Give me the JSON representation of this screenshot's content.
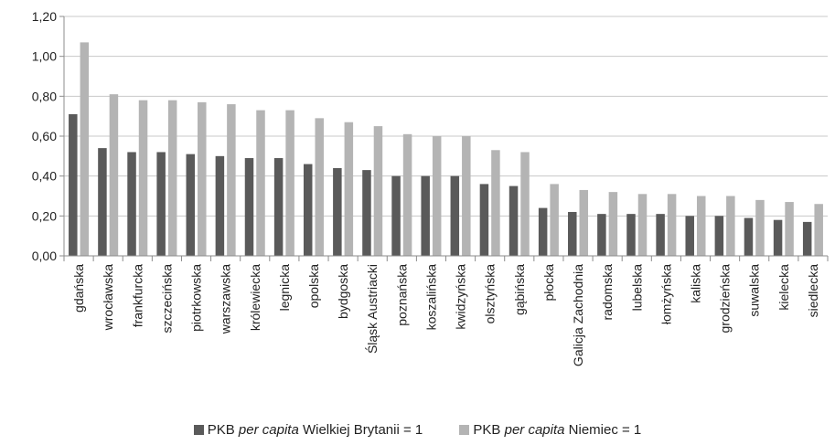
{
  "chart_data": {
    "type": "bar",
    "categories": [
      "gdańska",
      "wrocławska",
      "frankfurcka",
      "szczecińska",
      "piotrkowska",
      "warszawska",
      "królewiecka",
      "legnicka",
      "opolska",
      "bydgoska",
      "Śląsk Austriacki",
      "poznańska",
      "koszalińska",
      "kwidzyńska",
      "olsztyńska",
      "gąbińska",
      "płocka",
      "Galicja Zachodnia",
      "radomska",
      "lubelska",
      "łomżyńska",
      "kaliska",
      "grodzieńska",
      "suwalska",
      "kielecka",
      "siedlecka"
    ],
    "series": [
      {
        "name_prefix": "PKB ",
        "name_italic": "per capita",
        "name_suffix": " Wielkiej Brytanii = 1",
        "color": "#5a5a5a",
        "values": [
          0.71,
          0.54,
          0.52,
          0.52,
          0.51,
          0.5,
          0.49,
          0.49,
          0.46,
          0.44,
          0.43,
          0.4,
          0.4,
          0.4,
          0.36,
          0.35,
          0.24,
          0.22,
          0.21,
          0.21,
          0.21,
          0.2,
          0.2,
          0.19,
          0.18,
          0.17
        ]
      },
      {
        "name_prefix": "PKB ",
        "name_italic": "per capita",
        "name_suffix": " Niemiec = 1",
        "color": "#b4b4b4",
        "values": [
          1.07,
          0.81,
          0.78,
          0.78,
          0.77,
          0.76,
          0.73,
          0.73,
          0.69,
          0.67,
          0.65,
          0.61,
          0.6,
          0.6,
          0.53,
          0.52,
          0.36,
          0.33,
          0.32,
          0.31,
          0.31,
          0.3,
          0.3,
          0.28,
          0.27,
          0.26
        ]
      }
    ],
    "y_ticks": [
      "0,00",
      "0,20",
      "0,40",
      "0,60",
      "0,80",
      "1,00",
      "1,20"
    ],
    "ylim": [
      0,
      1.2
    ],
    "grid": true,
    "legend_position": "bottom"
  }
}
